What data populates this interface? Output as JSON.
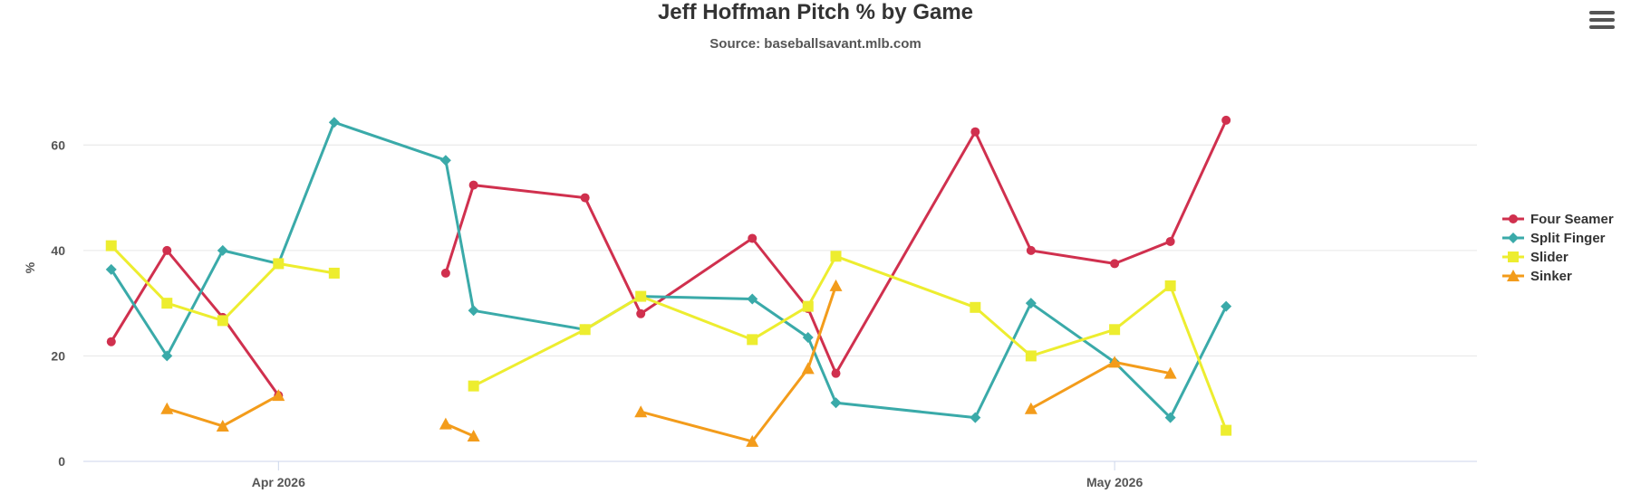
{
  "chart_data": {
    "type": "line",
    "title": "Jeff Hoffman Pitch % by Game",
    "subtitle": "Source: baseballsavant.mlb.com",
    "ylabel": "%",
    "xlabel": "",
    "ylim": [
      0,
      70
    ],
    "yticks": [
      0,
      20,
      40,
      60
    ],
    "xlim": [
      "2026-03-25",
      "2026-05-14"
    ],
    "xticks": [
      {
        "date": "2026-04-01",
        "label": "Apr 2026"
      },
      {
        "date": "2026-05-01",
        "label": "May 2026"
      }
    ],
    "grid": "horizontal",
    "legend_position": "right",
    "series": [
      {
        "name": "Four Seamer",
        "color": "#d0304e",
        "marker": "circle",
        "points": [
          [
            "2026-03-26",
            22.7
          ],
          [
            "2026-03-28",
            40.0
          ],
          [
            "2026-03-30",
            27.3
          ],
          [
            "2026-04-01",
            12.5
          ],
          null,
          [
            "2026-04-07",
            35.7
          ],
          [
            "2026-04-08",
            52.4
          ],
          [
            "2026-04-12",
            50.0
          ],
          [
            "2026-04-14",
            28.0
          ],
          [
            "2026-04-18",
            42.3
          ],
          [
            "2026-04-20",
            29.0
          ],
          [
            "2026-04-21",
            16.7
          ],
          [
            "2026-04-26",
            62.5
          ],
          [
            "2026-04-28",
            40.0
          ],
          [
            "2026-05-01",
            37.5
          ],
          [
            "2026-05-03",
            41.7
          ],
          [
            "2026-05-05",
            64.7
          ]
        ]
      },
      {
        "name": "Split Finger",
        "color": "#3aaaa9",
        "marker": "diamond",
        "points": [
          [
            "2026-03-26",
            36.4
          ],
          [
            "2026-03-28",
            20.0
          ],
          [
            "2026-03-30",
            40.0
          ],
          [
            "2026-04-01",
            37.5
          ],
          [
            "2026-04-03",
            64.3
          ],
          [
            "2026-04-07",
            57.1
          ],
          [
            "2026-04-08",
            28.6
          ],
          [
            "2026-04-12",
            25.0
          ],
          [
            "2026-04-14",
            31.3
          ],
          [
            "2026-04-18",
            30.8
          ],
          [
            "2026-04-20",
            23.5
          ],
          [
            "2026-04-21",
            11.1
          ],
          [
            "2026-04-26",
            8.3
          ],
          [
            "2026-04-28",
            30.0
          ],
          [
            "2026-05-01",
            18.8
          ],
          [
            "2026-05-03",
            8.3
          ],
          [
            "2026-05-05",
            29.4
          ]
        ]
      },
      {
        "name": "Slider",
        "color": "#eded2f",
        "marker": "square",
        "points": [
          [
            "2026-03-26",
            40.9
          ],
          [
            "2026-03-28",
            30.0
          ],
          [
            "2026-03-30",
            26.7
          ],
          [
            "2026-04-01",
            37.5
          ],
          [
            "2026-04-03",
            35.7
          ],
          null,
          [
            "2026-04-08",
            14.3
          ],
          [
            "2026-04-12",
            25.0
          ],
          [
            "2026-04-14",
            31.3
          ],
          [
            "2026-04-18",
            23.1
          ],
          [
            "2026-04-20",
            29.4
          ],
          [
            "2026-04-21",
            38.9
          ],
          [
            "2026-04-26",
            29.2
          ],
          [
            "2026-04-28",
            20.0
          ],
          [
            "2026-05-01",
            25.0
          ],
          [
            "2026-05-03",
            33.3
          ],
          [
            "2026-05-05",
            5.9
          ]
        ]
      },
      {
        "name": "Sinker",
        "color": "#f39c1b",
        "marker": "triangle",
        "points": [
          [
            "2026-03-28",
            10.0
          ],
          [
            "2026-03-30",
            6.7
          ],
          [
            "2026-04-01",
            12.5
          ],
          null,
          [
            "2026-04-07",
            7.1
          ],
          [
            "2026-04-08",
            4.8
          ],
          null,
          [
            "2026-04-14",
            9.4
          ],
          [
            "2026-04-18",
            3.8
          ],
          [
            "2026-04-20",
            17.6
          ],
          [
            "2026-04-21",
            33.3
          ],
          null,
          [
            "2026-04-28",
            10.0
          ],
          [
            "2026-05-01",
            18.8
          ],
          [
            "2026-05-03",
            16.7
          ]
        ]
      }
    ]
  }
}
